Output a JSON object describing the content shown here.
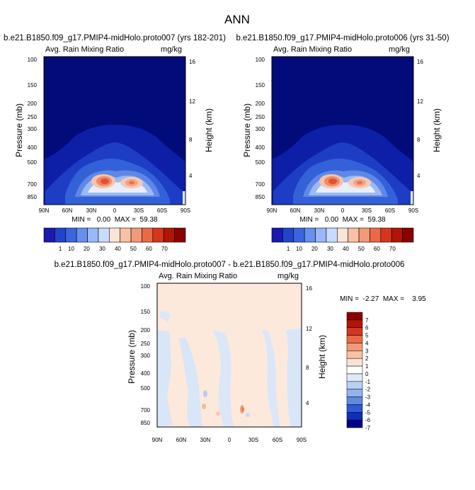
{
  "figure": {
    "title": "ANN"
  },
  "panels": [
    {
      "title": "b.e21.B1850.f09_g17.PMIP4-midHolo.proto007 (yrs 182-201)",
      "left_label": "Avg. Rain Mixing Ratio",
      "right_label": "mg/kg",
      "stats": "MIN =   0.00  MAX =  59.38"
    },
    {
      "title": "b.e21.B1850.f09_g17.PMIP4-midHolo.proto006 (yrs 31-50)",
      "left_label": "Avg. Rain Mixing Ratio",
      "right_label": "mg/kg",
      "stats": "MIN =   0.00  MAX =  59.38"
    },
    {
      "title": "b.e21.B1850.f09_g17.PMIP4-midHolo.proto007 - b.e21.B1850.f09_g17.PMIP4-midHolo.proto006",
      "left_label": "Avg. Rain Mixing Ratio",
      "right_label": "mg/kg",
      "stats": "MIN =  -2.27  MAX =    3.95"
    }
  ],
  "axes": {
    "xlabels": [
      "90N",
      "60N",
      "30N",
      "0",
      "30S",
      "60S",
      "90S"
    ],
    "ylabel": "Pressure (mb)",
    "yticks": [
      "100",
      "150",
      "200",
      "250",
      "300",
      "400",
      "500",
      "700",
      "850"
    ],
    "right_ylabel": "Height (km)",
    "right_ticks": [
      "16",
      "12",
      "8",
      "4"
    ]
  },
  "colorbars": {
    "top": {
      "labels": [
        "1",
        "10",
        "20",
        "30",
        "40",
        "50",
        "60",
        "70"
      ],
      "colors": [
        "#1a1ab0",
        "#2244cc",
        "#3a66dd",
        "#6690ee",
        "#99b8f7",
        "#c8dbfc",
        "#fbe4d6",
        "#f8c0a4",
        "#f29a78",
        "#ea6a48",
        "#d6361e",
        "#b01508",
        "#8b0000"
      ]
    },
    "diff": {
      "labels": [
        "7",
        "6",
        "5",
        "4",
        "3",
        "2",
        "1",
        "0",
        "-1",
        "-2",
        "-3",
        "-4",
        "-5",
        "-6",
        "-7"
      ],
      "colors": [
        "#8b0000",
        "#b01508",
        "#d6361e",
        "#ea6a48",
        "#f29a78",
        "#f8c0a4",
        "#fbe4d6",
        "#ffffff",
        "#dfeaf8",
        "#b9cff4",
        "#93b3ee",
        "#5f8ae2",
        "#2e5ad4",
        "#0f2fb8",
        "#00008b"
      ]
    }
  },
  "chart_data": [
    {
      "type": "heatmap",
      "title": "b.e21.B1850.f09_g17.PMIP4-midHolo.proto007 (yrs 182-201)",
      "variable": "Avg. Rain Mixing Ratio",
      "units": "mg/kg",
      "x": [
        "90N",
        "60N",
        "30N",
        "0",
        "30S",
        "60S",
        "90S"
      ],
      "y_pressure_mb": [
        100,
        150,
        200,
        250,
        300,
        400,
        500,
        700,
        850
      ],
      "y_height_km": [
        16,
        12,
        8,
        4
      ],
      "levels": [
        1,
        10,
        20,
        30,
        40,
        50,
        60,
        70
      ],
      "min": 0.0,
      "max": 59.38,
      "maxima": [
        {
          "lat": "15N",
          "pressure_mb": 700
        },
        {
          "lat": "15S",
          "pressure_mb": 700
        }
      ]
    },
    {
      "type": "heatmap",
      "title": "b.e21.B1850.f09_g17.PMIP4-midHolo.proto006 (yrs 31-50)",
      "variable": "Avg. Rain Mixing Ratio",
      "units": "mg/kg",
      "x": [
        "90N",
        "60N",
        "30N",
        "0",
        "30S",
        "60S",
        "90S"
      ],
      "y_pressure_mb": [
        100,
        150,
        200,
        250,
        300,
        400,
        500,
        700,
        850
      ],
      "y_height_km": [
        16,
        12,
        8,
        4
      ],
      "levels": [
        1,
        10,
        20,
        30,
        40,
        50,
        60,
        70
      ],
      "min": 0.0,
      "max": 59.38,
      "maxima": [
        {
          "lat": "15N",
          "pressure_mb": 700
        },
        {
          "lat": "15S",
          "pressure_mb": 700
        }
      ]
    },
    {
      "type": "heatmap",
      "title": "b.e21.B1850.f09_g17.PMIP4-midHolo.proto007 - b.e21.B1850.f09_g17.PMIP4-midHolo.proto006",
      "variable": "Avg. Rain Mixing Ratio",
      "units": "mg/kg",
      "x": [
        "90N",
        "60N",
        "30N",
        "0",
        "30S",
        "60S",
        "90S"
      ],
      "y_pressure_mb": [
        100,
        150,
        200,
        250,
        300,
        400,
        500,
        700,
        850
      ],
      "y_height_km": [
        16,
        12,
        8,
        4
      ],
      "levels": [
        -7,
        -6,
        -5,
        -4,
        -3,
        -2,
        -1,
        0,
        1,
        2,
        3,
        4,
        5,
        6,
        7
      ],
      "min": -2.27,
      "max": 3.95
    }
  ]
}
